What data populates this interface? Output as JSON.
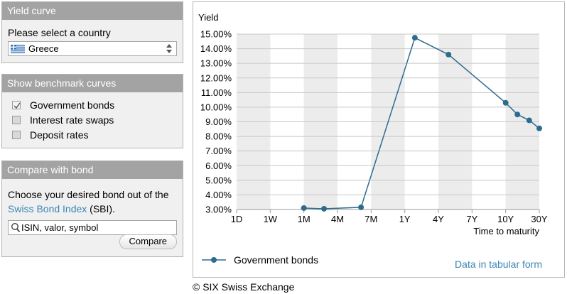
{
  "panels": {
    "yield_curve": {
      "title": "Yield curve",
      "select_label": "Please select a country",
      "selected_country": "Greece"
    },
    "benchmark": {
      "title": "Show benchmark curves",
      "items": [
        {
          "label": "Government bonds",
          "checked": true
        },
        {
          "label": "Interest rate swaps",
          "checked": false
        },
        {
          "label": "Deposit rates",
          "checked": false
        }
      ]
    },
    "compare": {
      "title": "Compare with bond",
      "text_before": "Choose your desired bond out of the",
      "link_text": "Swiss Bond Index",
      "text_after": " (SBI).",
      "search_placeholder": "ISIN, valor, symbol",
      "button_label": "Compare"
    }
  },
  "chart_data": {
    "type": "line",
    "ylabel": "Yield",
    "xlabel": "Time to maturity",
    "x_ticks": [
      "1D",
      "1W",
      "1M",
      "4M",
      "7M",
      "1Y",
      "4Y",
      "7Y",
      "10Y",
      "30Y"
    ],
    "y_ticks": [
      "15.00%",
      "14.00%",
      "13.00%",
      "12.00%",
      "11.00%",
      "10.00%",
      "9.00%",
      "8.00%",
      "7.00%",
      "6.00%",
      "5.00%",
      "4.00%",
      "3.00%"
    ],
    "ylim": [
      3.0,
      15.0
    ],
    "series": [
      {
        "name": "Government bonds",
        "color": "#2e6c8e",
        "points": [
          {
            "x": 2.0,
            "y": 3.1
          },
          {
            "x": 2.6,
            "y": 3.05
          },
          {
            "x": 3.7,
            "y": 3.15
          },
          {
            "x": 5.3,
            "y": 14.75
          },
          {
            "x": 6.3,
            "y": 13.6
          },
          {
            "x": 8.0,
            "y": 10.3
          },
          {
            "x": 8.35,
            "y": 9.5
          },
          {
            "x": 8.7,
            "y": 9.1
          },
          {
            "x": 9.0,
            "y": 8.55
          }
        ]
      }
    ],
    "legend_position": "bottom-left",
    "link_text": "Data in tabular form"
  },
  "footer": {
    "copyright": "© SIX Swiss Exchange"
  }
}
